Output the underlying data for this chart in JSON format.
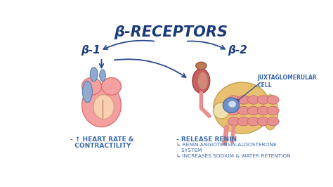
{
  "title": "β-RECEPTORS",
  "title_color": "#1a3a7a",
  "title_fontsize": 15,
  "bg_color": "#ffffff",
  "beta1_label": "β-1",
  "beta2_label": "β-2",
  "label_color": "#1a3a7a",
  "label_fontsize": 11,
  "heart_text_line1": "- ↑ HEART RATE &",
  "heart_text_line2": "  CONTRACTILITY",
  "kidney_text": "- RELEASE RENIN",
  "sub_text1": "↳ RENIN-ANGIOTENSIN-ALDOSTERONE",
  "sub_text2": "   SYSTEM",
  "sub_text3": "↳ INCREASES SODIUM & WATER RETENTION",
  "body_text_color": "#3a6aaa",
  "body_fontsize": 6.5,
  "sub_fontsize": 5.3,
  "juxta_label": "JUXTAGLOMERULAR\nCELL",
  "juxta_fontsize": 5.5,
  "arrow_color": "#2a4a8a",
  "heart_pink": "#f5a0a0",
  "heart_dark": "#e07070",
  "heart_inner": "#f8d0b0",
  "vessel_blue": "#90aad0",
  "vessel_dark": "#6080a8",
  "kidney_tan": "#e8c070",
  "kidney_tan_dark": "#c0a050",
  "kidney_red": "#c86060",
  "kidney_red_dark": "#a04040",
  "tubule_pink": "#e89090",
  "tubule_dark": "#c06060",
  "blue_cell": "#7090c8",
  "blue_cell_dark": "#4060a0",
  "adrenal_brown": "#c07858",
  "adrenal_dark": "#905040"
}
